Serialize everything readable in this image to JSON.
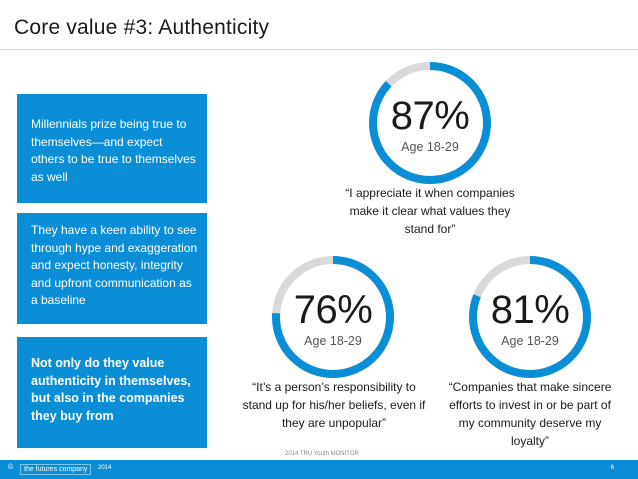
{
  "title": "Core value #3: Authenticity",
  "boxes": {
    "box1": "Millennials prize being true to themselves—and expect others to be true to themselves as well",
    "box2": "They have a keen ability to see through hype and exaggeration and expect honesty, integrity and upfront communication as a baseline",
    "box3": "Not only do they value authenticity in themselves, but also in the companies they buy from"
  },
  "stats": [
    {
      "percent": "87%",
      "value": 87,
      "age": "Age 18-29",
      "quote": "“I appreciate it when companies make it clear what values they stand for”"
    },
    {
      "percent": "76%",
      "value": 76,
      "age": "Age 18-29",
      "quote": "“It’s a person’s responsibility to stand up for his/her beliefs, even if they are unpopular”"
    },
    {
      "percent": "81%",
      "value": 81,
      "age": "Age 18-29",
      "quote": "“Companies that make sincere efforts to invest in or be part of my community deserve my loyalty”"
    }
  ],
  "source": "2014 TRU Youth MONITOR",
  "footer": {
    "copyright": "©",
    "company": "the futures company",
    "year": "2014",
    "page": "6"
  },
  "colors": {
    "accent": "#0a8fd6",
    "track": "#d9d9d9"
  }
}
